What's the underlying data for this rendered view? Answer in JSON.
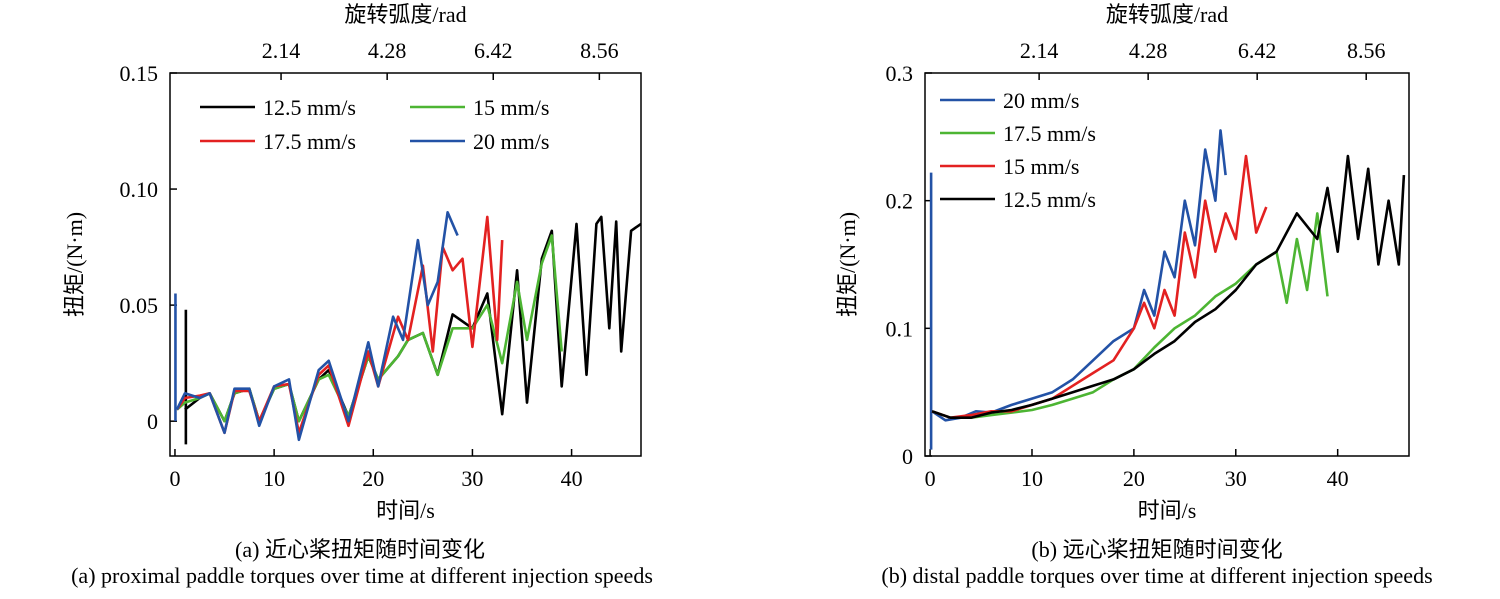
{
  "chart_data": [
    {
      "id": "a",
      "type": "line",
      "caption_cn": "(a) 近心桨扭矩随时间变化",
      "caption_en": "(a) proximal paddle torques over time at different injection speeds",
      "xlabel": "时间/s",
      "ylabel": "扭矩/(N·m)",
      "top_label": "旋转弧度/rad",
      "xlim": [
        -0.5,
        47
      ],
      "ylim": [
        -0.015,
        0.15
      ],
      "xticks": [
        0,
        10,
        20,
        30,
        40
      ],
      "xtick_labels": [
        "0",
        "10",
        "20",
        "30",
        "40"
      ],
      "yticks": [
        0,
        0.05,
        0.1,
        0.15
      ],
      "ytick_labels": [
        "0",
        "0.05",
        "0.10",
        "0.15"
      ],
      "top_ticks": [
        10.7,
        21.4,
        32.1,
        42.8
      ],
      "top_tick_labels": [
        "2.14",
        "4.28",
        "6.42",
        "8.56"
      ],
      "legend": [
        {
          "name": "12.5 mm/s",
          "color": "#000000"
        },
        {
          "name": "15 mm/s",
          "color": "#4db533"
        },
        {
          "name": "17.5 mm/s",
          "color": "#e32121"
        },
        {
          "name": "20 mm/s",
          "color": "#2352a6"
        }
      ],
      "series": [
        {
          "name": "12.5 mm/s",
          "color": "#000000",
          "spike": [
            1.1,
            -0.01,
            0.048
          ],
          "x": [
            1.0,
            2.5,
            3.5,
            5.0,
            6.0,
            7.5,
            8.5,
            10.0,
            11.5,
            12.5,
            14.5,
            15.5,
            17.5,
            19.5,
            20.5,
            22.5,
            23.5,
            25.0,
            26.5,
            28.0,
            30.0,
            31.5,
            33.0,
            34.5,
            35.5,
            37.0,
            38.0,
            39.0,
            40.5,
            41.5,
            42.5,
            43.0,
            43.8,
            44.5,
            45.0,
            46.0,
            47.0
          ],
          "y": [
            0.005,
            0.01,
            0.012,
            0.0,
            0.012,
            0.014,
            0.0,
            0.014,
            0.016,
            0.0,
            0.018,
            0.022,
            0.002,
            0.028,
            0.018,
            0.028,
            0.035,
            0.038,
            0.02,
            0.046,
            0.04,
            0.055,
            0.003,
            0.065,
            0.008,
            0.07,
            0.082,
            0.015,
            0.085,
            0.02,
            0.085,
            0.088,
            0.04,
            0.086,
            0.03,
            0.082,
            0.085
          ]
        },
        {
          "name": "15 mm/s",
          "color": "#4db533",
          "x": [
            0.2,
            1.0,
            2.5,
            3.5,
            5.0,
            6.0,
            7.5,
            8.5,
            10.0,
            11.5,
            12.5,
            14.5,
            15.5,
            17.5,
            19.5,
            20.5,
            22.5,
            23.5,
            25.0,
            26.5,
            28.0,
            30.0,
            31.5,
            33.0,
            34.5,
            35.5,
            37.0,
            38.0,
            39.0
          ],
          "y": [
            0.005,
            0.008,
            0.01,
            0.012,
            0.0,
            0.012,
            0.014,
            0.0,
            0.014,
            0.016,
            0.0,
            0.018,
            0.02,
            0.002,
            0.028,
            0.018,
            0.028,
            0.035,
            0.038,
            0.02,
            0.04,
            0.04,
            0.05,
            0.025,
            0.06,
            0.035,
            0.068,
            0.08,
            0.03
          ]
        },
        {
          "name": "17.5 mm/s",
          "color": "#e32121",
          "x": [
            0.2,
            1.0,
            2.5,
            3.5,
            5.0,
            6.0,
            7.5,
            8.5,
            10.0,
            11.5,
            12.5,
            14.5,
            15.5,
            17.5,
            19.5,
            20.5,
            22.5,
            23.5,
            25.0,
            26.0,
            27.0,
            28.0,
            29.0,
            30.0,
            31.5,
            32.5,
            33.0
          ],
          "y": [
            0.005,
            0.01,
            0.011,
            0.012,
            -0.005,
            0.013,
            0.013,
            0.0,
            0.015,
            0.016,
            -0.005,
            0.02,
            0.024,
            -0.002,
            0.03,
            0.015,
            0.045,
            0.035,
            0.067,
            0.03,
            0.075,
            0.065,
            0.07,
            0.032,
            0.088,
            0.035,
            0.078
          ]
        },
        {
          "name": "20 mm/s",
          "color": "#2352a6",
          "spike": [
            0.05,
            0.0,
            0.055
          ],
          "x": [
            0.2,
            1.0,
            2.5,
            3.5,
            5.0,
            6.0,
            7.5,
            8.5,
            10.0,
            11.5,
            12.5,
            14.5,
            15.5,
            17.5,
            19.5,
            20.5,
            22.0,
            23.0,
            24.5,
            25.5,
            26.5,
            27.5,
            28.5
          ],
          "y": [
            0.005,
            0.012,
            0.01,
            0.012,
            -0.005,
            0.014,
            0.014,
            -0.002,
            0.015,
            0.018,
            -0.008,
            0.022,
            0.026,
            0.0,
            0.034,
            0.015,
            0.045,
            0.035,
            0.078,
            0.05,
            0.06,
            0.09,
            0.08
          ]
        }
      ]
    },
    {
      "id": "b",
      "type": "line",
      "caption_cn": "(b) 远心桨扭矩随时间变化",
      "caption_en": "(b) distal paddle torques over time at different injection speeds",
      "xlabel": "时间/s",
      "ylabel": "扭矩/(N·m)",
      "top_label": "旋转弧度/rad",
      "xlim": [
        -0.5,
        47
      ],
      "ylim": [
        0,
        0.3
      ],
      "xticks": [
        0,
        10,
        20,
        30,
        40
      ],
      "xtick_labels": [
        "0",
        "10",
        "20",
        "30",
        "40"
      ],
      "yticks": [
        0,
        0.1,
        0.2,
        0.3
      ],
      "ytick_labels": [
        "0",
        "0.1",
        "0.2",
        "0.3"
      ],
      "top_ticks": [
        10.7,
        21.4,
        32.1,
        42.8
      ],
      "top_tick_labels": [
        "2.14",
        "4.28",
        "6.42",
        "8.56"
      ],
      "legend": [
        {
          "name": "20 mm/s",
          "color": "#2352a6"
        },
        {
          "name": "17.5 mm/s",
          "color": "#4db533"
        },
        {
          "name": "15 mm/s",
          "color": "#e32121"
        },
        {
          "name": "12.5 mm/s",
          "color": "#000000"
        }
      ],
      "series": [
        {
          "name": "20 mm/s",
          "color": "#2352a6",
          "spike": [
            0.1,
            0.005,
            0.222
          ],
          "x": [
            0.2,
            1.5,
            3,
            4.5,
            6,
            8,
            10,
            12,
            14,
            16,
            18,
            20,
            21,
            22,
            23,
            24,
            25,
            26,
            27,
            28,
            28.5,
            29
          ],
          "y": [
            0.035,
            0.028,
            0.03,
            0.035,
            0.034,
            0.04,
            0.045,
            0.05,
            0.06,
            0.075,
            0.09,
            0.1,
            0.13,
            0.11,
            0.16,
            0.14,
            0.2,
            0.165,
            0.24,
            0.2,
            0.255,
            0.22
          ]
        },
        {
          "name": "17.5 mm/s",
          "color": "#4db533",
          "x": [
            0.2,
            2,
            4,
            6,
            8,
            10,
            12,
            14,
            16,
            18,
            20,
            22,
            24,
            26,
            28,
            30,
            32,
            34,
            35,
            36,
            37,
            38,
            39
          ],
          "y": [
            0.035,
            0.03,
            0.03,
            0.032,
            0.034,
            0.036,
            0.04,
            0.045,
            0.05,
            0.06,
            0.068,
            0.085,
            0.1,
            0.11,
            0.125,
            0.135,
            0.15,
            0.16,
            0.12,
            0.17,
            0.13,
            0.19,
            0.125
          ]
        },
        {
          "name": "15 mm/s",
          "color": "#e32121",
          "x": [
            0.2,
            2,
            4,
            6,
            8,
            10,
            12,
            14,
            16,
            18,
            20,
            21,
            22,
            23,
            24,
            25,
            26,
            27,
            28,
            29,
            30,
            31,
            32,
            33
          ],
          "y": [
            0.035,
            0.03,
            0.032,
            0.035,
            0.035,
            0.04,
            0.045,
            0.055,
            0.065,
            0.075,
            0.1,
            0.12,
            0.1,
            0.13,
            0.11,
            0.175,
            0.14,
            0.2,
            0.16,
            0.19,
            0.17,
            0.235,
            0.175,
            0.195
          ]
        },
        {
          "name": "12.5 mm/s",
          "color": "#000000",
          "x": [
            0.2,
            2,
            4,
            6,
            8,
            10,
            12,
            14,
            16,
            18,
            20,
            22,
            24,
            26,
            28,
            30,
            32,
            34,
            36,
            38,
            39,
            40,
            41,
            42,
            43,
            44,
            45,
            46,
            46.5
          ],
          "y": [
            0.035,
            0.03,
            0.03,
            0.034,
            0.036,
            0.04,
            0.045,
            0.05,
            0.055,
            0.06,
            0.068,
            0.08,
            0.09,
            0.105,
            0.115,
            0.13,
            0.15,
            0.16,
            0.19,
            0.17,
            0.21,
            0.16,
            0.235,
            0.17,
            0.225,
            0.15,
            0.2,
            0.15,
            0.22
          ]
        }
      ]
    }
  ]
}
